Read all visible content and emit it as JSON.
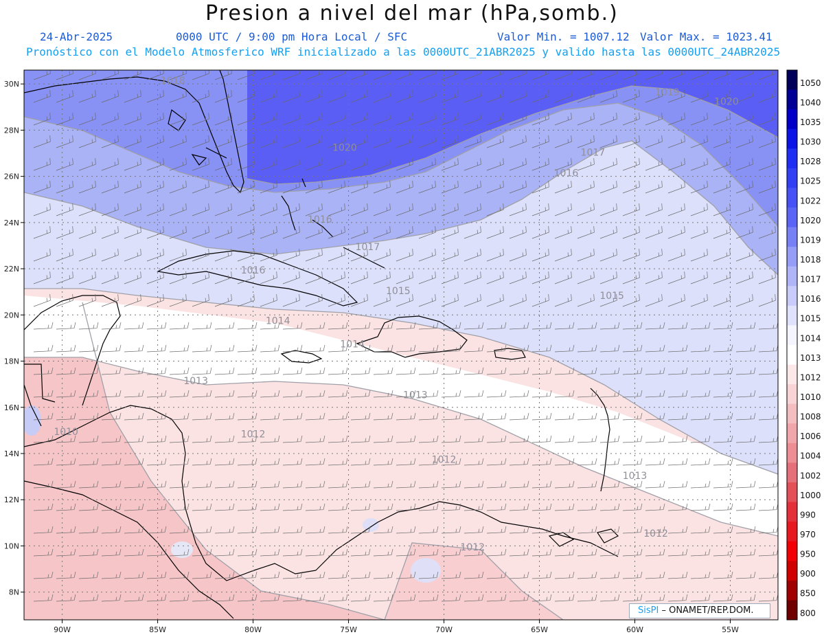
{
  "header": {
    "title": "Presion a nivel del mar (hPa,somb.)",
    "date": "24-Abr-2025",
    "time": "0000 UTC / 9:00 pm Hora Local / SFC",
    "min_label": "Valor Min. = 1007.12",
    "max_label": "Valor Max. = 1023.41",
    "description": "Pronóstico con el Modelo Atmosferico WRF inicializado a las 0000UTC_21ABR2025 y valido hasta las  0000UTC_24ABR2025"
  },
  "map": {
    "lon_range": [
      -92,
      -52.5
    ],
    "lat_range": [
      6.8,
      30.6
    ],
    "lon_ticks": [
      "90W",
      "85W",
      "80W",
      "75W",
      "70W",
      "65W",
      "60W",
      "55W"
    ],
    "lat_ticks": [
      "8N",
      "10N",
      "12N",
      "14N",
      "16N",
      "18N",
      "20N",
      "22N",
      "24N",
      "26N",
      "28N",
      "30N"
    ],
    "grid": true,
    "contour_labels": [
      {
        "text": "1018",
        "lon": -84.2,
        "lat": 30.0
      },
      {
        "text": "1019",
        "lon": -58.3,
        "lat": 29.5
      },
      {
        "text": "1020",
        "lon": -55.2,
        "lat": 29.1
      },
      {
        "text": "1020",
        "lon": -75.2,
        "lat": 27.1
      },
      {
        "text": "1017",
        "lon": -62.2,
        "lat": 26.9
      },
      {
        "text": "1016",
        "lon": -63.6,
        "lat": 26.0
      },
      {
        "text": "1016",
        "lon": -76.5,
        "lat": 24.0
      },
      {
        "text": "1017",
        "lon": -74.0,
        "lat": 22.8
      },
      {
        "text": "1016",
        "lon": -80.0,
        "lat": 21.8
      },
      {
        "text": "1015",
        "lon": -72.4,
        "lat": 20.9
      },
      {
        "text": "1015",
        "lon": -61.2,
        "lat": 20.7
      },
      {
        "text": "1014",
        "lon": -78.7,
        "lat": 19.6
      },
      {
        "text": "1014",
        "lon": -74.8,
        "lat": 18.6
      },
      {
        "text": "1013",
        "lon": -83.0,
        "lat": 17.0
      },
      {
        "text": "1013",
        "lon": -71.5,
        "lat": 16.4
      },
      {
        "text": "1012",
        "lon": -80.0,
        "lat": 14.7
      },
      {
        "text": "1012",
        "lon": -70.0,
        "lat": 13.6
      },
      {
        "text": "1013",
        "lon": -60.0,
        "lat": 12.9
      },
      {
        "text": "1012",
        "lon": -58.9,
        "lat": 10.4
      },
      {
        "text": "1012",
        "lon": -68.5,
        "lat": 9.8
      },
      {
        "text": "1010",
        "lon": -89.8,
        "lat": 14.8
      }
    ],
    "fill_colors": {
      "high_blue": "#5a5ef4",
      "mid_blue": "#9aa6f4",
      "light_blue": "#d8dcfa",
      "white": "#ffffff",
      "light_pink": "#fbe3e4",
      "pink": "#f7c9cb",
      "coast": "#000000",
      "contour": "#a0a0a8",
      "grid": "#666666"
    }
  },
  "colorbar": {
    "levels": [
      "1050",
      "1040",
      "1035",
      "1030",
      "1028",
      "1025",
      "1022",
      "1020",
      "1019",
      "1018",
      "1017",
      "1016",
      "1015",
      "1014",
      "1013",
      "1012",
      "1010",
      "1008",
      "1006",
      "1004",
      "1002",
      "1000",
      "990",
      "970",
      "950",
      "900",
      "850",
      "800"
    ],
    "colors": [
      "#00005a",
      "#000096",
      "#0000c8",
      "#0a14e6",
      "#1e2ef4",
      "#3240f5",
      "#4652f5",
      "#5a64f5",
      "#7880f6",
      "#969df7",
      "#b0b5f9",
      "#c9ccfb",
      "#e0e2fc",
      "#f4f5fe",
      "#ffffff",
      "#fce8e9",
      "#f8d4d6",
      "#f4bec1",
      "#f0a6aa",
      "#ec8e93",
      "#e6707a",
      "#e45058",
      "#e3303a",
      "#e81820",
      "#f20006",
      "#d00000",
      "#a00000",
      "#700000"
    ]
  },
  "credit": {
    "brand": "SisPI",
    "text": "– ONAMET/REP.DOM."
  }
}
